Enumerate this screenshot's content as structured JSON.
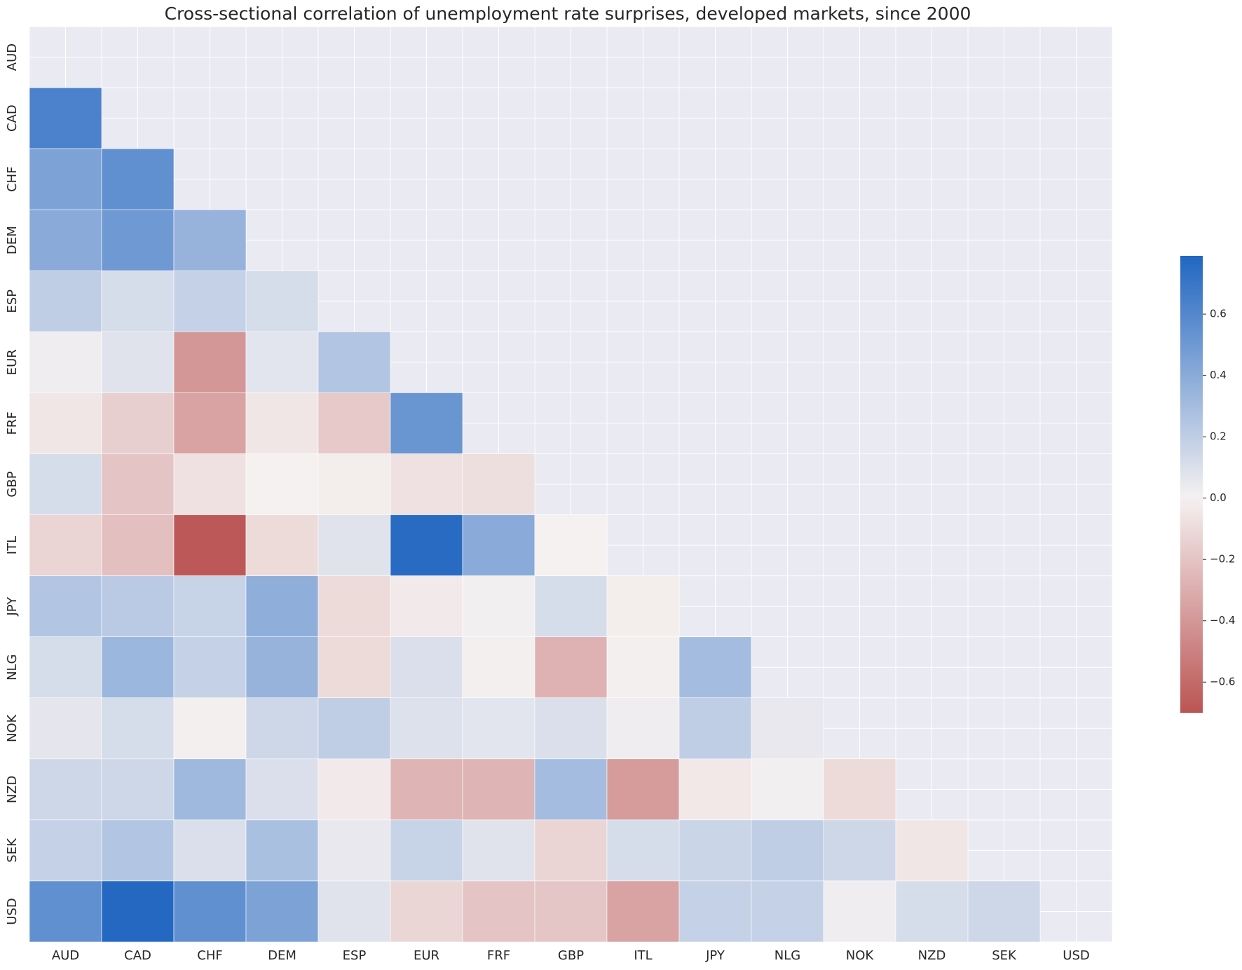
{
  "chart_data": {
    "type": "heatmap",
    "title": "Cross-sectional correlation of unemployment rate surprises, developed markets, since 2000",
    "x_categories": [
      "AUD",
      "CAD",
      "CHF",
      "DEM",
      "ESP",
      "EUR",
      "FRF",
      "GBP",
      "ITL",
      "JPY",
      "NLG",
      "NOK",
      "NZD",
      "SEK",
      "USD"
    ],
    "y_categories": [
      "AUD",
      "CAD",
      "CHF",
      "DEM",
      "ESP",
      "EUR",
      "FRF",
      "GBP",
      "ITL",
      "JPY",
      "NLG",
      "NOK",
      "NZD",
      "SEK",
      "USD"
    ],
    "values": [
      [
        null,
        null,
        null,
        null,
        null,
        null,
        null,
        null,
        null,
        null,
        null,
        null,
        null,
        null,
        null
      ],
      [
        0.63,
        null,
        null,
        null,
        null,
        null,
        null,
        null,
        null,
        null,
        null,
        null,
        null,
        null,
        null
      ],
      [
        0.45,
        0.55,
        null,
        null,
        null,
        null,
        null,
        null,
        null,
        null,
        null,
        null,
        null,
        null,
        null
      ],
      [
        0.4,
        0.5,
        0.35,
        null,
        null,
        null,
        null,
        null,
        null,
        null,
        null,
        null,
        null,
        null,
        null
      ],
      [
        0.2,
        0.12,
        0.18,
        0.12,
        null,
        null,
        null,
        null,
        null,
        null,
        null,
        null,
        null,
        null,
        null
      ],
      [
        0.02,
        0.08,
        -0.4,
        0.07,
        0.25,
        null,
        null,
        null,
        null,
        null,
        null,
        null,
        null,
        null,
        null
      ],
      [
        -0.05,
        -0.15,
        -0.35,
        -0.05,
        -0.18,
        0.52,
        null,
        null,
        null,
        null,
        null,
        null,
        null,
        null,
        null
      ],
      [
        0.12,
        -0.2,
        -0.07,
        0.0,
        -0.02,
        -0.07,
        -0.08,
        null,
        null,
        null,
        null,
        null,
        null,
        null,
        null
      ],
      [
        -0.13,
        -0.22,
        -0.68,
        -0.1,
        0.08,
        0.76,
        0.4,
        0.0,
        null,
        null,
        null,
        null,
        null,
        null,
        null
      ],
      [
        0.25,
        0.22,
        0.17,
        0.38,
        -0.1,
        -0.03,
        0.01,
        0.12,
        -0.02,
        null,
        null,
        null,
        null,
        null,
        null
      ],
      [
        0.12,
        0.33,
        0.18,
        0.35,
        -0.1,
        0.1,
        -0.01,
        -0.28,
        -0.01,
        0.3,
        null,
        null,
        null,
        null,
        null
      ],
      [
        0.06,
        0.12,
        -0.01,
        0.15,
        0.2,
        0.09,
        0.07,
        0.1,
        0.02,
        0.2,
        0.05,
        null,
        null,
        null,
        null
      ],
      [
        0.15,
        0.15,
        0.32,
        0.1,
        -0.03,
        -0.27,
        -0.27,
        0.3,
        -0.38,
        -0.04,
        0.01,
        -0.1,
        null,
        null,
        null
      ],
      [
        0.18,
        0.25,
        0.1,
        0.28,
        0.05,
        0.17,
        0.08,
        -0.13,
        0.12,
        0.16,
        0.2,
        0.15,
        -0.05,
        null,
        null
      ],
      [
        0.55,
        0.78,
        0.55,
        0.45,
        0.08,
        -0.12,
        -0.2,
        -0.19,
        -0.35,
        0.18,
        0.18,
        0.02,
        0.12,
        0.15,
        null
      ]
    ],
    "clim": [
      -0.7,
      0.79
    ],
    "cticks": [
      {
        "value": -0.6,
        "label": "−0.6"
      },
      {
        "value": -0.4,
        "label": "−0.4"
      },
      {
        "value": -0.2,
        "label": "−0.2"
      },
      {
        "value": 0.0,
        "label": "0.0"
      },
      0.2,
      0.4,
      0.6
    ],
    "colormap": [
      "#b3403f",
      "#f5f1f1",
      "#2166c1"
    ],
    "background": "#eaeaf2"
  }
}
